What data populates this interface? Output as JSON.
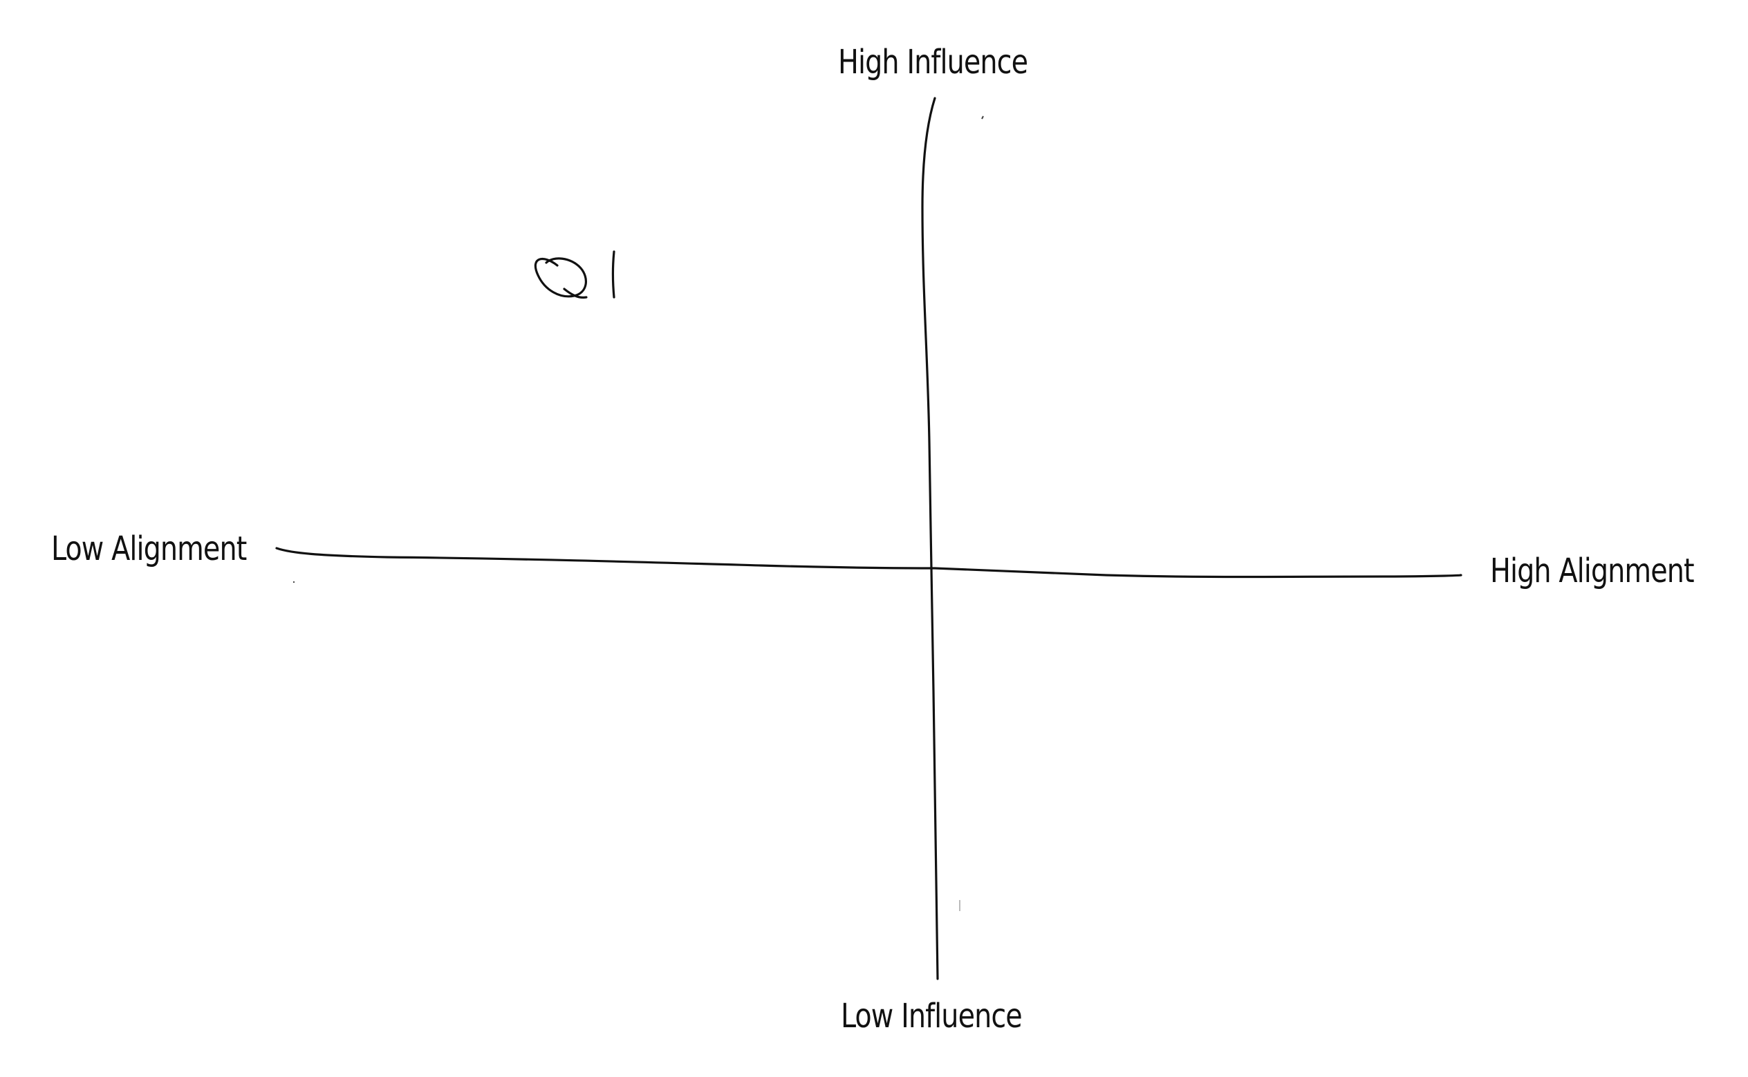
{
  "diagram": {
    "type": "quadrant-sketch",
    "labels": {
      "top": "High Influence",
      "bottom": "Low Influence",
      "left": "Low Alignment",
      "right": "High Alignment"
    },
    "quadrant_marker": "Q1",
    "stroke_color": "#111111",
    "background_color": "#ffffff"
  }
}
